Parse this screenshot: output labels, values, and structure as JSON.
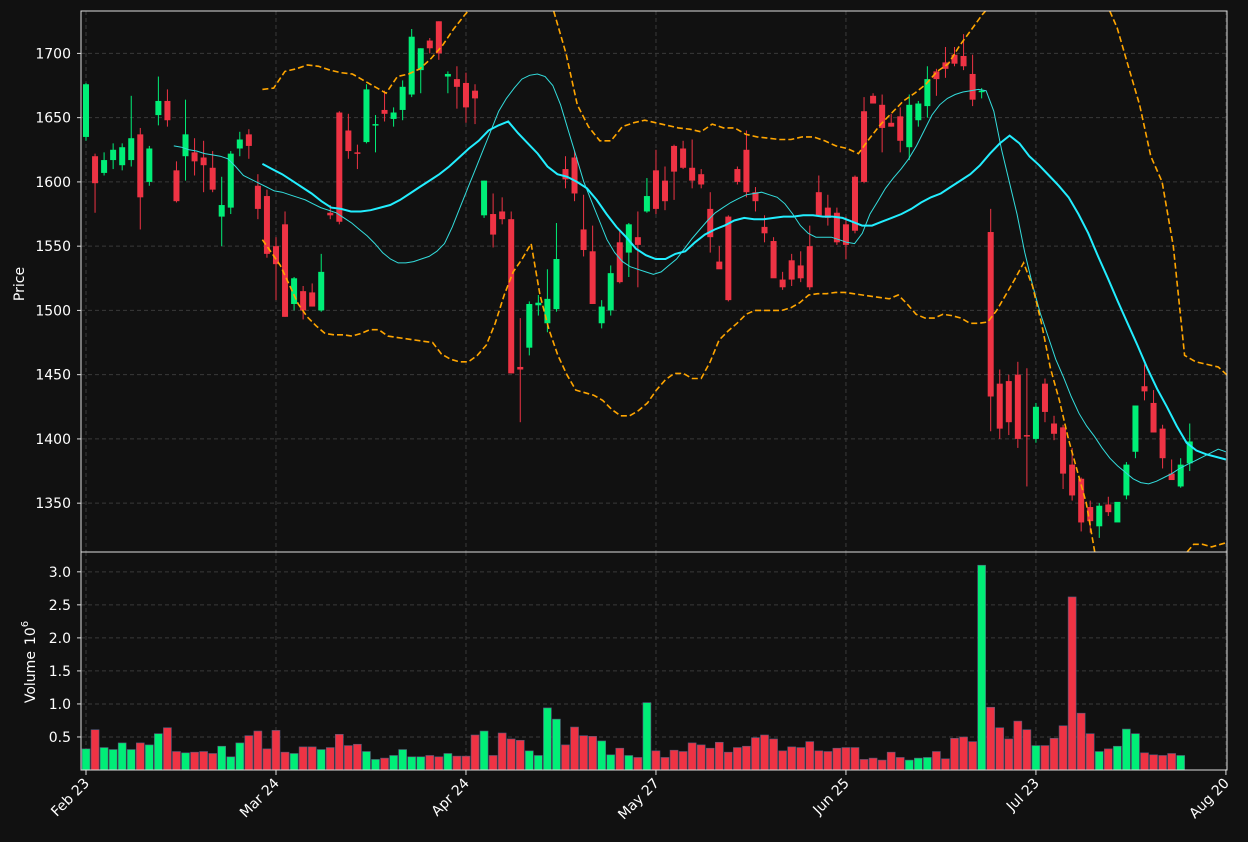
{
  "chart_data": {
    "type": "candlestick",
    "price_panel": {
      "ylabel": "Price",
      "ylim": [
        1312,
        1733
      ],
      "yticks": [
        1350,
        1400,
        1450,
        1500,
        1550,
        1600,
        1650,
        1700
      ],
      "ohlc": [
        [
          1635,
          1677,
          1632,
          1676
        ],
        [
          1620,
          1622,
          1576,
          1599
        ],
        [
          1607,
          1623,
          1605,
          1617
        ],
        [
          1617,
          1630,
          1610,
          1625
        ],
        [
          1613,
          1630,
          1609,
          1627
        ],
        [
          1617,
          1667,
          1612,
          1634
        ],
        [
          1637,
          1642,
          1563,
          1588
        ],
        [
          1600,
          1628,
          1597,
          1626
        ],
        [
          1652,
          1682,
          1644,
          1663
        ],
        [
          1663,
          1672,
          1643,
          1648
        ],
        [
          1609,
          1616,
          1584,
          1585
        ],
        [
          1620,
          1664,
          1601,
          1637
        ],
        [
          1623,
          1634,
          1605,
          1616
        ],
        [
          1619,
          1632,
          1592,
          1613
        ],
        [
          1611,
          1624,
          1592,
          1594
        ],
        [
          1573,
          1604,
          1550,
          1582
        ],
        [
          1580,
          1624,
          1575,
          1622
        ],
        [
          1626,
          1639,
          1620,
          1633
        ],
        [
          1637,
          1641,
          1618,
          1628
        ],
        [
          1597,
          1606,
          1571,
          1579
        ],
        [
          1589,
          1594,
          1541,
          1544
        ],
        [
          1550,
          1557,
          1508,
          1536
        ],
        [
          1567,
          1577,
          1495,
          1495
        ],
        [
          1505,
          1526,
          1500,
          1525
        ],
        [
          1515,
          1519,
          1493,
          1500
        ],
        [
          1514,
          1521,
          1503,
          1503
        ],
        [
          1500,
          1544,
          1499,
          1530
        ],
        [
          1576,
          1582,
          1571,
          1574
        ],
        [
          1654,
          1655,
          1567,
          1569
        ],
        [
          1640,
          1653,
          1618,
          1624
        ],
        [
          1623,
          1629,
          1610,
          1622
        ],
        [
          1631,
          1676,
          1630,
          1672
        ],
        [
          1644,
          1652,
          1623,
          1645
        ],
        [
          1656,
          1671,
          1647,
          1653
        ],
        [
          1649,
          1658,
          1643,
          1654
        ],
        [
          1656,
          1679,
          1648,
          1674
        ],
        [
          1668,
          1719,
          1666,
          1713
        ],
        [
          1687,
          1704,
          1669,
          1704
        ],
        [
          1710,
          1712,
          1700,
          1704
        ],
        [
          1725,
          1725,
          1695,
          1700
        ],
        [
          1682,
          1686,
          1669,
          1684
        ],
        [
          1680,
          1690,
          1657,
          1674
        ],
        [
          1677,
          1685,
          1646,
          1658
        ],
        [
          1671,
          1676,
          1645,
          1665
        ],
        [
          1574,
          1601,
          1572,
          1601
        ],
        [
          1575,
          1591,
          1549,
          1559
        ],
        [
          1577,
          1588,
          1567,
          1571
        ],
        [
          1571,
          1577,
          1451,
          1451
        ],
        [
          1456,
          1494,
          1413,
          1454
        ],
        [
          1471,
          1507,
          1465,
          1505
        ],
        [
          1504,
          1512,
          1496,
          1506
        ],
        [
          1490,
          1532,
          1483,
          1509
        ],
        [
          1501,
          1568,
          1499,
          1540
        ],
        [
          1610,
          1620,
          1595,
          1602
        ],
        [
          1619,
          1624,
          1585,
          1591
        ],
        [
          1563,
          1590,
          1542,
          1547
        ],
        [
          1546,
          1566,
          1505,
          1505
        ],
        [
          1490,
          1508,
          1486,
          1503
        ],
        [
          1500,
          1535,
          1496,
          1529
        ],
        [
          1553,
          1562,
          1521,
          1522
        ],
        [
          1545,
          1568,
          1526,
          1567
        ],
        [
          1557,
          1577,
          1518,
          1551
        ],
        [
          1577,
          1603,
          1576,
          1589
        ],
        [
          1609,
          1625,
          1575,
          1579
        ],
        [
          1601,
          1612,
          1578,
          1585
        ],
        [
          1628,
          1629,
          1586,
          1608
        ],
        [
          1626,
          1632,
          1610,
          1611
        ],
        [
          1611,
          1633,
          1595,
          1601
        ],
        [
          1606,
          1610,
          1595,
          1598
        ],
        [
          1579,
          1592,
          1545,
          1557
        ],
        [
          1538,
          1550,
          1533,
          1532
        ],
        [
          1573,
          1574,
          1507,
          1508
        ],
        [
          1610,
          1612,
          1598,
          1600
        ],
        [
          1625,
          1640,
          1588,
          1592
        ],
        [
          1592,
          1596,
          1577,
          1585
        ],
        [
          1565,
          1574,
          1553,
          1560
        ],
        [
          1554,
          1557,
          1527,
          1525
        ],
        [
          1524,
          1530,
          1516,
          1518
        ],
        [
          1539,
          1544,
          1519,
          1524
        ],
        [
          1535,
          1546,
          1522,
          1525
        ],
        [
          1550,
          1566,
          1516,
          1518
        ],
        [
          1592,
          1605,
          1575,
          1574
        ],
        [
          1580,
          1590,
          1566,
          1572
        ],
        [
          1576,
          1580,
          1551,
          1553
        ],
        [
          1567,
          1573,
          1540,
          1551
        ],
        [
          1604,
          1605,
          1560,
          1562
        ],
        [
          1655,
          1666,
          1599,
          1600
        ],
        [
          1667,
          1669,
          1661,
          1661
        ],
        [
          1660,
          1668,
          1623,
          1642
        ],
        [
          1646,
          1653,
          1643,
          1643
        ],
        [
          1651,
          1658,
          1623,
          1632
        ],
        [
          1627,
          1668,
          1617,
          1660
        ],
        [
          1648,
          1663,
          1643,
          1661
        ],
        [
          1659,
          1690,
          1650,
          1680
        ],
        [
          1686,
          1688,
          1667,
          1680
        ],
        [
          1693,
          1705,
          1681,
          1688
        ],
        [
          1699,
          1705,
          1690,
          1692
        ],
        [
          1698,
          1715,
          1687,
          1690
        ],
        [
          1684,
          1699,
          1659,
          1664
        ],
        [
          1671,
          1673,
          1665,
          1671
        ],
        [
          1561,
          1579,
          1406,
          1433
        ],
        [
          1443,
          1454,
          1400,
          1408
        ],
        [
          1445,
          1450,
          1403,
          1413
        ],
        [
          1450,
          1460,
          1393,
          1400
        ],
        [
          1403,
          1455,
          1363,
          1402
        ],
        [
          1400,
          1428,
          1397,
          1425
        ],
        [
          1443,
          1447,
          1413,
          1421
        ],
        [
          1412,
          1418,
          1399,
          1404
        ],
        [
          1409,
          1411,
          1361,
          1373
        ],
        [
          1380,
          1393,
          1352,
          1356
        ],
        [
          1369,
          1370,
          1328,
          1335
        ],
        [
          1347,
          1352,
          1327,
          1336
        ],
        [
          1332,
          1350,
          1323,
          1348
        ],
        [
          1349,
          1355,
          1340,
          1343
        ],
        [
          1335,
          1350,
          1336,
          1351
        ],
        [
          1356,
          1382,
          1353,
          1380
        ],
        [
          1390,
          1426,
          1385,
          1426
        ],
        [
          1441,
          1458,
          1430,
          1437
        ],
        [
          1428,
          1438,
          1405,
          1405
        ],
        [
          1408,
          1411,
          1377,
          1385
        ],
        [
          1373,
          1384,
          1370,
          1368
        ],
        [
          1363,
          1385,
          1362,
          1380
        ],
        [
          1381,
          1412,
          1375,
          1398
        ]
      ],
      "sma_short": [
        1628,
        1627,
        1625,
        1624,
        1622,
        1621,
        1620,
        1618,
        1612,
        1605,
        1602,
        1599,
        1596,
        1593,
        1592,
        1590,
        1588,
        1586,
        1583,
        1580,
        1578,
        1576,
        1572,
        1568,
        1563,
        1558,
        1552,
        1545,
        1540,
        1537,
        1537,
        1538,
        1540,
        1542,
        1546,
        1552,
        1565,
        1580,
        1595,
        1610,
        1625,
        1640,
        1655,
        1665,
        1673,
        1680,
        1683,
        1684,
        1682,
        1675,
        1660,
        1640,
        1620,
        1600,
        1585,
        1570,
        1555,
        1545,
        1538,
        1534,
        1532,
        1530,
        1528,
        1530,
        1535,
        1540,
        1548,
        1556,
        1563,
        1570,
        1576,
        1580,
        1584,
        1587,
        1590,
        1591,
        1592,
        1590,
        1588,
        1583,
        1575,
        1566,
        1560,
        1557,
        1557,
        1557,
        1555,
        1553,
        1552,
        1560,
        1575,
        1585,
        1595,
        1603,
        1610,
        1618,
        1628,
        1640,
        1652,
        1660,
        1665,
        1668,
        1670,
        1671,
        1672,
        1671,
        1655,
        1625,
        1600,
        1575,
        1545,
        1520,
        1498,
        1480,
        1462,
        1448,
        1433,
        1420,
        1410,
        1402,
        1393,
        1385,
        1379,
        1374,
        1369,
        1366,
        1365,
        1367,
        1370,
        1373,
        1377,
        1380,
        1383,
        1386,
        1389,
        1392,
        1390
      ],
      "sma_long": [
        1614,
        1610,
        1606,
        1601,
        1596,
        1591,
        1585,
        1580,
        1579,
        1577,
        1577,
        1578,
        1580,
        1582,
        1586,
        1591,
        1596,
        1601,
        1606,
        1612,
        1619,
        1626,
        1632,
        1640,
        1644,
        1647,
        1638,
        1630,
        1622,
        1612,
        1606,
        1604,
        1600,
        1595,
        1586,
        1575,
        1565,
        1557,
        1548,
        1543,
        1540,
        1540,
        1544,
        1546,
        1553,
        1559,
        1563,
        1566,
        1570,
        1572,
        1571,
        1571,
        1572,
        1573,
        1573,
        1574,
        1574,
        1573,
        1573,
        1572,
        1569,
        1566,
        1566,
        1569,
        1572,
        1575,
        1579,
        1584,
        1588,
        1591,
        1596,
        1601,
        1606,
        1613,
        1622,
        1630,
        1636,
        1630,
        1620,
        1613,
        1605,
        1597,
        1588,
        1575,
        1560,
        1542,
        1525,
        1507,
        1490,
        1473,
        1455,
        1439,
        1425,
        1410,
        1397,
        1391,
        1388,
        1386,
        1384
      ],
      "upper_band": [
        1672,
        1673,
        1686,
        1688,
        1691,
        1690,
        1687,
        1685,
        1684,
        1679,
        1674,
        1669,
        1682,
        1684,
        1688,
        1696,
        1706,
        1719,
        1730,
        1740,
        1748,
        1760,
        1780,
        1800,
        1820,
        1760,
        1730,
        1700,
        1660,
        1643,
        1632,
        1632,
        1643,
        1646,
        1648,
        1646,
        1644,
        1642,
        1641,
        1639,
        1645,
        1642,
        1642,
        1637,
        1635,
        1634,
        1633,
        1633,
        1635,
        1635,
        1632,
        1628,
        1626,
        1622,
        1634,
        1645,
        1654,
        1663,
        1669,
        1676,
        1686,
        1692,
        1706,
        1718,
        1730,
        1740,
        1760,
        1780,
        1800,
        1800,
        1790,
        1780,
        1770,
        1760,
        1750,
        1740,
        1720,
        1690,
        1660,
        1620,
        1600,
        1550,
        1465,
        1460,
        1458,
        1456,
        1448
      ],
      "lower_band": [
        1555,
        1545,
        1535,
        1520,
        1505,
        1495,
        1488,
        1482,
        1481,
        1481,
        1480,
        1482,
        1485,
        1485,
        1480,
        1479,
        1478,
        1477,
        1476,
        1475,
        1466,
        1462,
        1460,
        1460,
        1465,
        1473,
        1490,
        1512,
        1530,
        1540,
        1552,
        1512,
        1485,
        1465,
        1450,
        1438,
        1436,
        1434,
        1430,
        1423,
        1418,
        1418,
        1422,
        1428,
        1438,
        1446,
        1451,
        1451,
        1447,
        1447,
        1460,
        1477,
        1484,
        1490,
        1497,
        1500,
        1500,
        1500,
        1500,
        1502,
        1506,
        1512,
        1513,
        1513,
        1514,
        1514,
        1513,
        1512,
        1511,
        1510,
        1509,
        1512,
        1505,
        1497,
        1494,
        1494,
        1497,
        1496,
        1494,
        1490,
        1490,
        1491,
        1500,
        1512,
        1524,
        1537,
        1519,
        1490,
        1455,
        1430,
        1400,
        1375,
        1350,
        1310,
        1290,
        1270,
        1260,
        1260,
        1262,
        1265,
        1270,
        1290,
        1300,
        1310,
        1318,
        1318,
        1316,
        1318,
        1320
      ]
    },
    "volume_panel": {
      "ylabel": "Volume",
      "unit_exponent": "6",
      "ylim": [
        0,
        3.3
      ],
      "yticks": [
        0.5,
        1.0,
        1.5,
        2.0,
        2.5,
        3.0
      ],
      "values": [
        0.32,
        0.61,
        0.34,
        0.31,
        0.41,
        0.31,
        0.41,
        0.38,
        0.55,
        0.64,
        0.28,
        0.26,
        0.27,
        0.28,
        0.25,
        0.36,
        0.2,
        0.41,
        0.52,
        0.59,
        0.32,
        0.6,
        0.27,
        0.25,
        0.35,
        0.35,
        0.31,
        0.34,
        0.54,
        0.37,
        0.39,
        0.28,
        0.16,
        0.18,
        0.22,
        0.31,
        0.2,
        0.2,
        0.22,
        0.2,
        0.25,
        0.21,
        0.21,
        0.53,
        0.59,
        0.22,
        0.56,
        0.47,
        0.45,
        0.29,
        0.22,
        0.94,
        0.77,
        0.38,
        0.65,
        0.52,
        0.51,
        0.44,
        0.23,
        0.33,
        0.22,
        0.19,
        1.02,
        0.29,
        0.19,
        0.3,
        0.28,
        0.41,
        0.38,
        0.33,
        0.42,
        0.27,
        0.34,
        0.36,
        0.49,
        0.53,
        0.47,
        0.29,
        0.35,
        0.34,
        0.43,
        0.29,
        0.28,
        0.33,
        0.34,
        0.34,
        0.16,
        0.18,
        0.15,
        0.27,
        0.19,
        0.15,
        0.18,
        0.19,
        0.28,
        0.17,
        0.48,
        0.5,
        0.43,
        3.1,
        0.95,
        0.64,
        0.47,
        0.74,
        0.61,
        0.37,
        0.37,
        0.48,
        0.67,
        2.62,
        0.86,
        0.55,
        0.28,
        0.32,
        0.36,
        0.62,
        0.55,
        0.26,
        0.23,
        0.22,
        0.25,
        0.22
      ]
    },
    "x_tick_labels": [
      {
        "index": 0,
        "label": "Feb 23"
      },
      {
        "index": 21,
        "label": "Mar 24"
      },
      {
        "index": 42,
        "label": "Apr 24"
      },
      {
        "index": 63,
        "label": "May 27"
      },
      {
        "index": 84,
        "label": "Jun 25"
      },
      {
        "index": 105,
        "label": "Jul 23"
      },
      {
        "index": 126,
        "label": "Aug 20"
      }
    ],
    "colors": {
      "background": "#111111",
      "up": "#00ee77",
      "down": "#ee3344",
      "sma_short": "#33dddd",
      "sma_long": "#22eeff",
      "bands": "#ffa500",
      "grid": "#3a3a3a",
      "axis": "#dddddd",
      "text": "#ffffff"
    },
    "grid": true
  }
}
